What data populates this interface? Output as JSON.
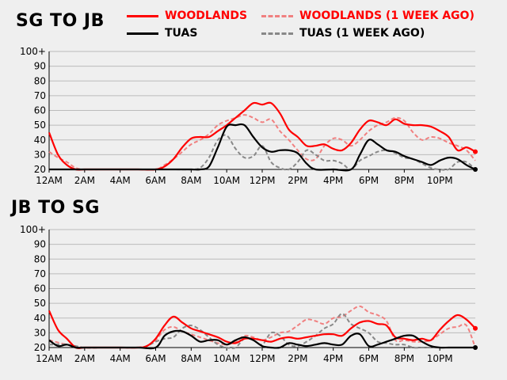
{
  "legend": {
    "woodlands": "WOODLANDS",
    "woodlands_prev": "WOODLANDS (1 WEEK AGO)",
    "tuas": "TUAS",
    "tuas_prev": "TUAS (1 WEEK AGO)"
  },
  "colors": {
    "woodlands": "#ff0000",
    "woodlands_prev": "#f08080",
    "tuas": "#000000",
    "tuas_prev": "#888888",
    "grid": "#bbbbbb"
  },
  "chart_data": [
    {
      "type": "line",
      "title": "SG TO JB",
      "ylim": [
        20,
        100
      ],
      "y_ticks": [
        "20",
        "30",
        "40",
        "50",
        "60",
        "70",
        "80",
        "90",
        "100+"
      ],
      "x_ticks": [
        "12AM",
        "2AM",
        "4AM",
        "6AM",
        "8AM",
        "10AM",
        "12PM",
        "2PM",
        "4PM",
        "6PM",
        "8PM",
        "10PM"
      ],
      "x_range_hours": [
        0,
        24
      ],
      "grid": true,
      "series": [
        {
          "name": "WOODLANDS",
          "style": "solid",
          "color": "#ff0000",
          "x": [
            0,
            0.5,
            1,
            1.5,
            2,
            3,
            4,
            5,
            6,
            6.5,
            7,
            7.5,
            8,
            8.5,
            9,
            9.5,
            10,
            10.5,
            11,
            11.5,
            12,
            12.5,
            13,
            13.5,
            14,
            14.5,
            15,
            15.5,
            16,
            16.5,
            17,
            17.5,
            18,
            18.5,
            19,
            19.5,
            20,
            20.5,
            21,
            21.5,
            22,
            22.5,
            23,
            23.5,
            24
          ],
          "values": [
            45,
            30,
            23,
            20,
            20,
            20,
            20,
            20,
            20,
            22,
            27,
            35,
            41,
            42,
            42,
            46,
            50,
            55,
            60,
            65,
            64,
            65,
            58,
            47,
            42,
            36,
            36,
            37,
            34,
            33,
            38,
            47,
            53,
            52,
            50,
            54,
            51,
            50,
            50,
            49,
            46,
            42,
            33,
            35,
            32
          ],
          "end_marker": true
        },
        {
          "name": "WOODLANDS (1 WEEK AGO)",
          "style": "dashed",
          "color": "#f08080",
          "x": [
            0,
            0.5,
            1,
            1.5,
            2,
            3,
            4,
            5,
            6,
            6.5,
            7,
            7.5,
            8,
            8.5,
            9,
            9.5,
            10,
            10.5,
            11,
            11.5,
            12,
            12.5,
            13,
            13.5,
            14,
            14.5,
            15,
            15.5,
            16,
            16.5,
            17,
            17.5,
            18,
            18.5,
            19,
            19.5,
            20,
            20.5,
            21,
            21.5,
            22,
            22.5,
            23,
            23.5,
            24
          ],
          "values": [
            32,
            28,
            25,
            21,
            20,
            20,
            20,
            20,
            20,
            23,
            27,
            32,
            37,
            40,
            44,
            50,
            53,
            55,
            57,
            55,
            52,
            54,
            46,
            40,
            33,
            27,
            27,
            36,
            41,
            40,
            36,
            40,
            46,
            50,
            52,
            55,
            53,
            45,
            40,
            42,
            41,
            38,
            36,
            33,
            26
          ]
        },
        {
          "name": "TUAS",
          "style": "solid",
          "color": "#000000",
          "x": [
            0,
            0.5,
            1,
            2,
            3,
            4,
            5,
            6,
            7,
            8,
            8.5,
            9,
            9.5,
            10,
            10.5,
            11,
            11.5,
            12,
            12.5,
            13,
            13.5,
            14,
            14.5,
            15,
            16,
            17,
            17.5,
            18,
            18.5,
            19,
            19.5,
            20,
            20.5,
            21,
            21.5,
            22,
            22.5,
            23,
            23.5,
            24
          ],
          "values": [
            20,
            20,
            20,
            20,
            20,
            20,
            20,
            20,
            20,
            20,
            20,
            22,
            35,
            49,
            50,
            50,
            42,
            35,
            32,
            33,
            33,
            31,
            24,
            20,
            20,
            20,
            30,
            40,
            37,
            33,
            32,
            29,
            27,
            25,
            23,
            26,
            28,
            27,
            23,
            20
          ],
          "end_marker": true
        },
        {
          "name": "TUAS (1 WEEK AGO)",
          "style": "dashed",
          "color": "#888888",
          "x": [
            0,
            1,
            2,
            3,
            4,
            5,
            6,
            7,
            8,
            8.5,
            9,
            9.5,
            10,
            10.5,
            11,
            11.5,
            12,
            12.5,
            13,
            13.5,
            14,
            14.5,
            15,
            15.5,
            16,
            16.5,
            17,
            17.5,
            18,
            18.5,
            19,
            19.5,
            20,
            20.5,
            21,
            21.5,
            22,
            22.5,
            23,
            23.5,
            24
          ],
          "values": [
            20,
            20,
            20,
            20,
            20,
            20,
            20,
            20,
            20,
            21,
            28,
            40,
            43,
            34,
            28,
            29,
            36,
            25,
            21,
            20,
            25,
            33,
            30,
            26,
            26,
            24,
            20,
            26,
            29,
            32,
            33,
            31,
            28,
            27,
            24,
            21,
            20,
            20,
            25,
            25,
            20
          ]
        }
      ]
    },
    {
      "type": "line",
      "title": "JB TO SG",
      "ylim": [
        20,
        100
      ],
      "y_ticks": [
        "20",
        "30",
        "40",
        "50",
        "60",
        "70",
        "80",
        "90",
        "100+"
      ],
      "x_ticks": [
        "12AM",
        "2AM",
        "4AM",
        "6AM",
        "8AM",
        "10AM",
        "12PM",
        "2PM",
        "4PM",
        "6PM",
        "8PM",
        "10PM"
      ],
      "x_range_hours": [
        0,
        24
      ],
      "grid": true,
      "series": [
        {
          "name": "WOODLANDS",
          "style": "solid",
          "color": "#ff0000",
          "x": [
            0,
            0.5,
            1,
            1.5,
            2,
            3,
            4,
            5,
            5.5,
            6,
            6.5,
            7,
            7.5,
            8,
            8.5,
            9,
            9.5,
            10,
            10.5,
            11,
            11.5,
            12,
            12.5,
            13,
            13.5,
            14,
            14.5,
            15,
            15.5,
            16,
            16.5,
            17,
            17.5,
            18,
            18.5,
            19,
            19.5,
            20,
            20.5,
            21,
            21.5,
            22,
            22.5,
            23,
            23.5,
            24
          ],
          "values": [
            45,
            32,
            26,
            20,
            20,
            20,
            20,
            20,
            21,
            26,
            35,
            41,
            37,
            33,
            31,
            29,
            27,
            24,
            23,
            26,
            26,
            25,
            24,
            26,
            27,
            26,
            27,
            28,
            29,
            29,
            28,
            33,
            37,
            38,
            36,
            35,
            27,
            26,
            25,
            26,
            25,
            32,
            38,
            42,
            39,
            33
          ],
          "end_marker": true
        },
        {
          "name": "WOODLANDS (1 WEEK AGO)",
          "style": "dashed",
          "color": "#f08080",
          "x": [
            0,
            1,
            2,
            3,
            4,
            5,
            5.5,
            6,
            6.5,
            7,
            7.5,
            8,
            8.5,
            9,
            9.5,
            10,
            10.5,
            11,
            11.5,
            12,
            12.5,
            13,
            13.5,
            14,
            14.5,
            15,
            15.5,
            16,
            16.5,
            17,
            17.5,
            18,
            18.5,
            19,
            19.5,
            20,
            20.5,
            21,
            21.5,
            22,
            22.5,
            23,
            23.5,
            24
          ],
          "values": [
            25,
            22,
            20,
            20,
            20,
            20,
            21,
            25,
            32,
            34,
            31,
            29,
            27,
            25,
            23,
            22,
            24,
            28,
            27,
            25,
            27,
            30,
            31,
            35,
            39,
            38,
            36,
            40,
            41,
            45,
            48,
            44,
            42,
            38,
            25,
            25,
            24,
            24,
            25,
            29,
            33,
            34,
            35,
            20
          ]
        },
        {
          "name": "TUAS",
          "style": "solid",
          "color": "#000000",
          "x": [
            0,
            0.5,
            1,
            1.5,
            2,
            3,
            4,
            5,
            6,
            6.5,
            7,
            7.5,
            8,
            8.5,
            9,
            9.5,
            10,
            10.5,
            11,
            11.5,
            12,
            12.5,
            13,
            13.5,
            14,
            14.5,
            15,
            15.5,
            16,
            16.5,
            17,
            17.5,
            18,
            18.5,
            19,
            19.5,
            20,
            20.5,
            21,
            21.5,
            22,
            22.5,
            23,
            23.5,
            24
          ],
          "values": [
            25,
            21,
            22,
            20,
            20,
            20,
            20,
            20,
            20,
            28,
            31,
            31,
            28,
            24,
            25,
            25,
            22,
            25,
            27,
            25,
            21,
            20,
            20,
            23,
            22,
            21,
            22,
            23,
            22,
            22,
            28,
            29,
            21,
            22,
            24,
            26,
            28,
            28,
            24,
            21,
            20,
            20,
            20,
            20,
            20
          ],
          "end_marker": true
        },
        {
          "name": "TUAS (1 WEEK AGO)",
          "style": "dashed",
          "color": "#888888",
          "x": [
            0,
            1,
            2,
            3,
            4,
            5,
            5.5,
            6,
            6.5,
            7,
            7.5,
            8,
            8.5,
            9,
            9.5,
            10,
            10.5,
            11,
            11.5,
            12,
            12.5,
            13,
            13.5,
            14,
            14.5,
            15,
            15.5,
            16,
            16.5,
            17,
            17.5,
            18,
            18.5,
            19,
            19.5,
            20,
            20.5,
            21,
            21.5,
            22,
            22.5,
            23,
            24
          ],
          "values": [
            22,
            22,
            20,
            20,
            20,
            20,
            21,
            24,
            26,
            27,
            33,
            35,
            32,
            27,
            22,
            20,
            20,
            26,
            25,
            22,
            30,
            28,
            22,
            21,
            24,
            28,
            33,
            36,
            43,
            36,
            33,
            30,
            24,
            23,
            22,
            22,
            20,
            20,
            20,
            20,
            20,
            20,
            20
          ]
        }
      ]
    }
  ]
}
